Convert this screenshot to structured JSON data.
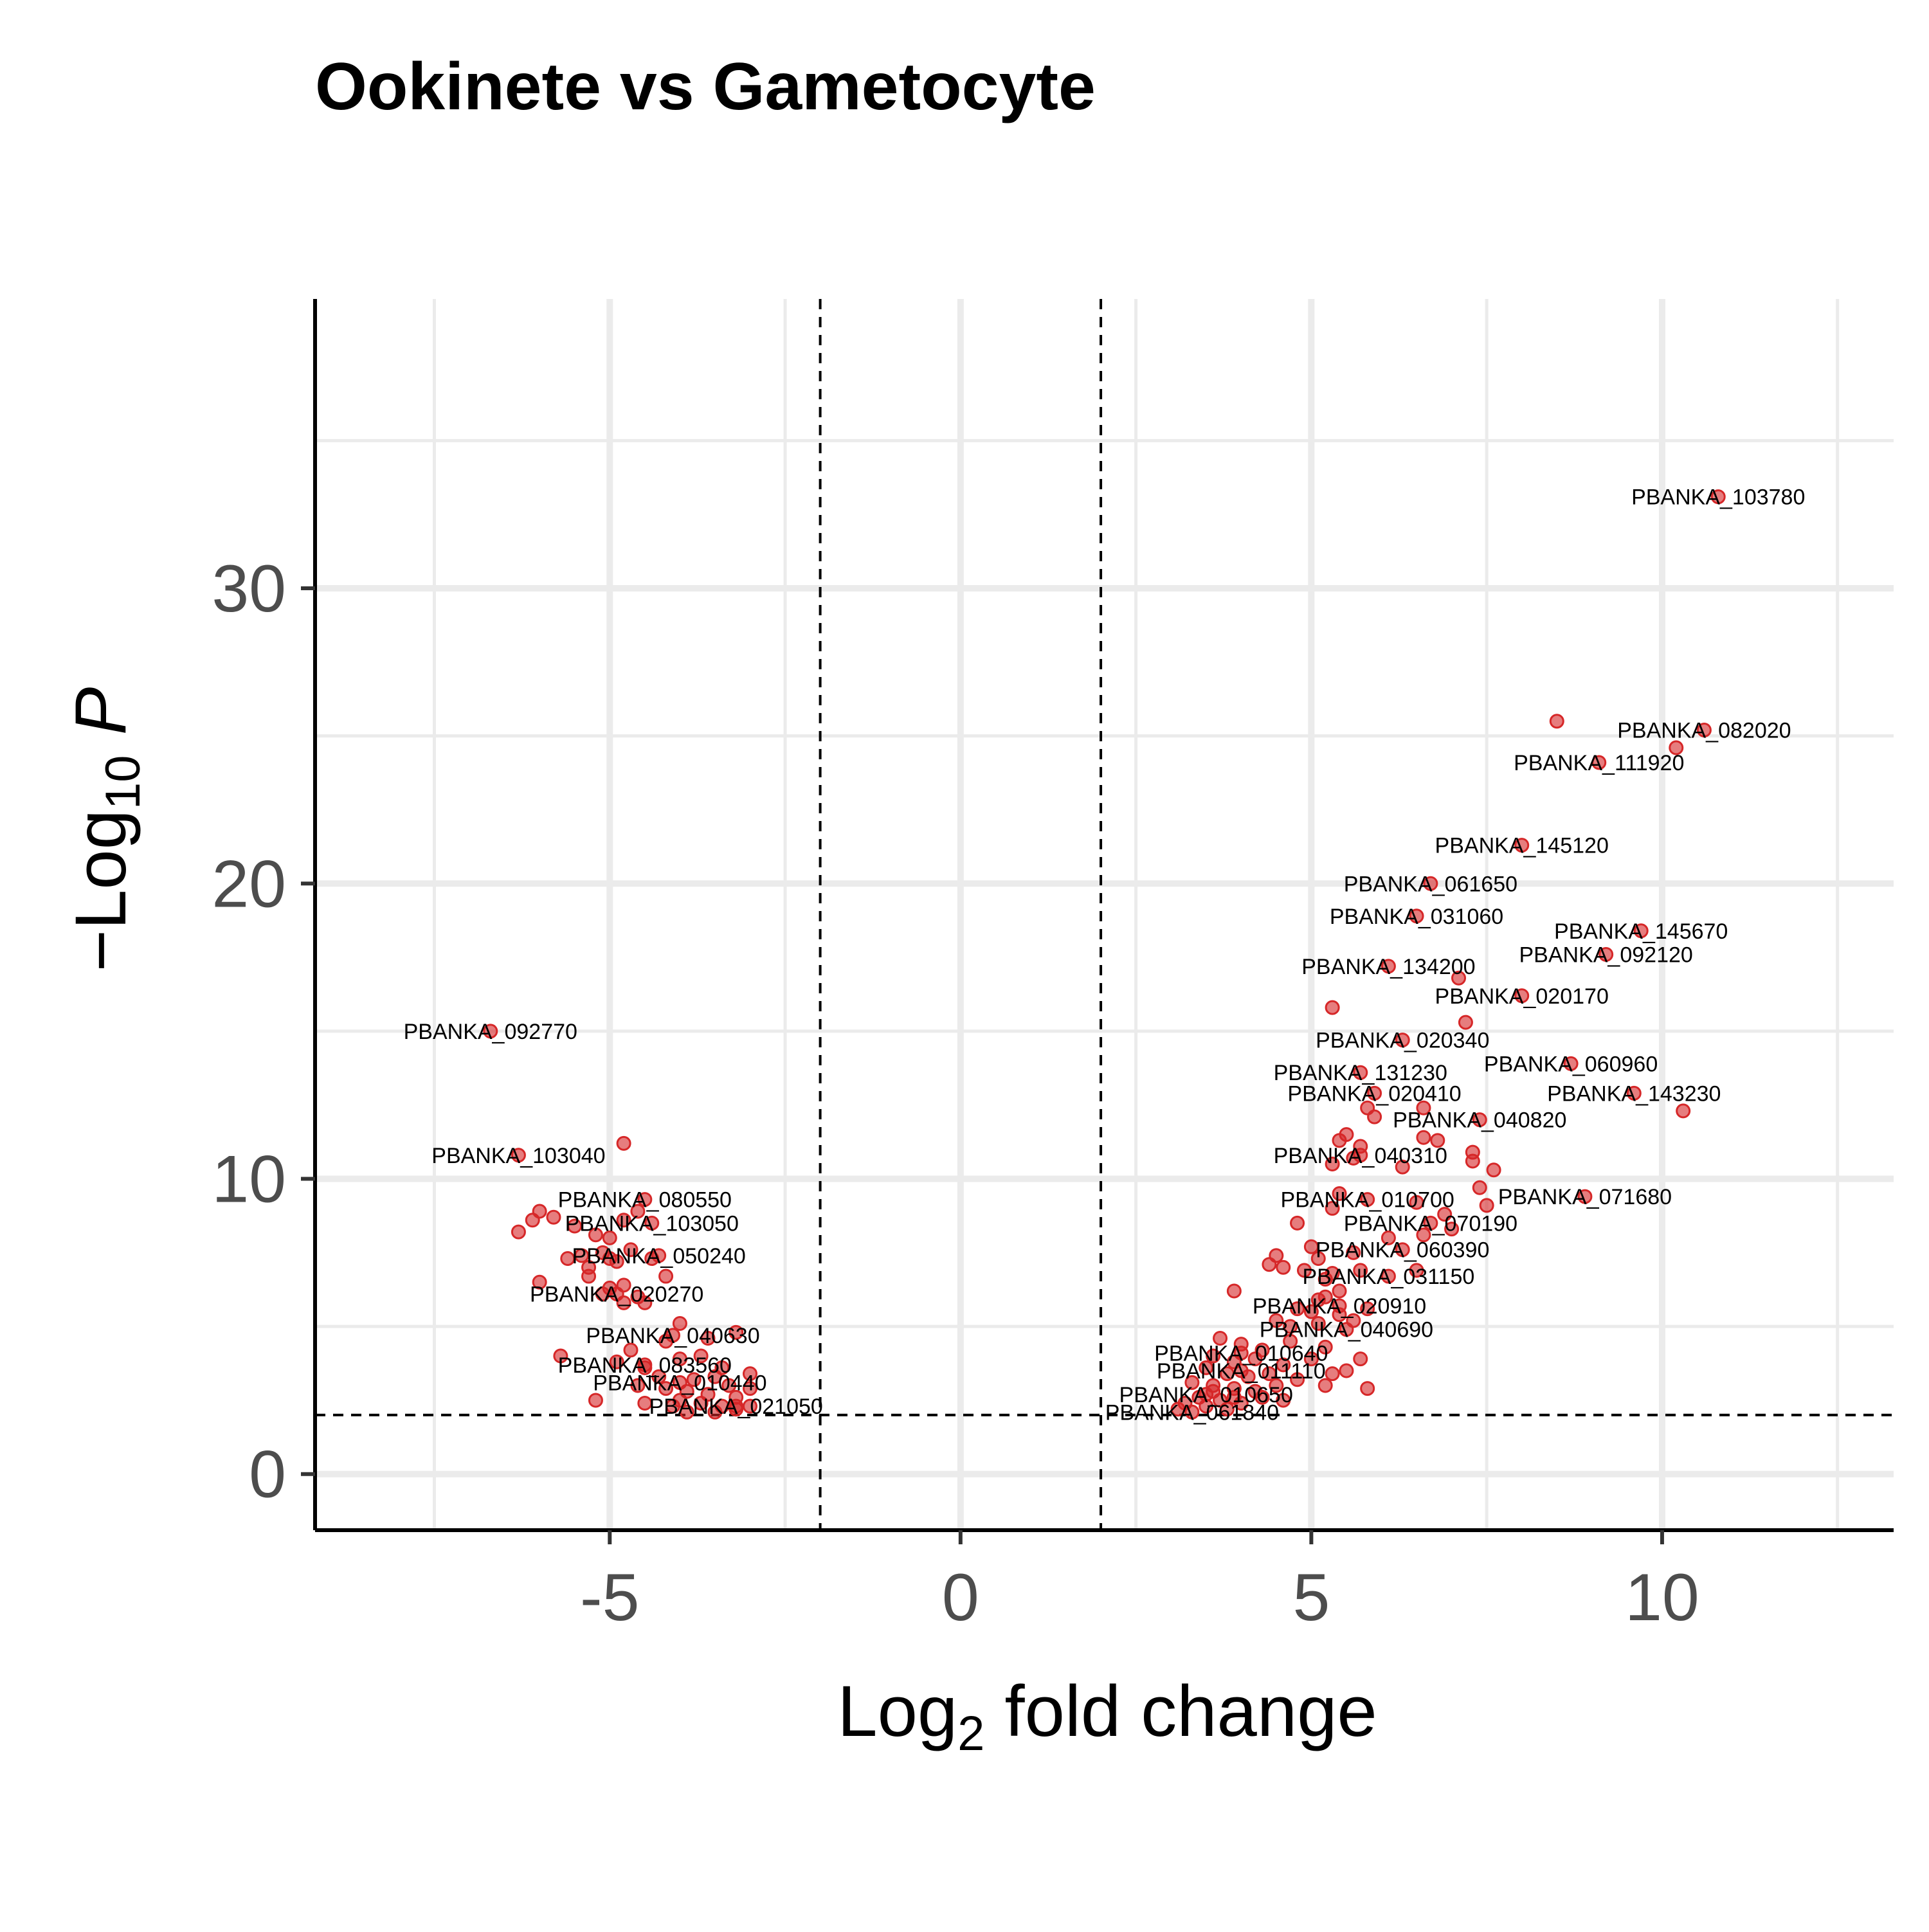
{
  "chart_data": {
    "type": "scatter",
    "title": "Ookinete vs Gametocyte",
    "xlabel": {
      "base": "Log",
      "sub": "2",
      "rest": " fold change"
    },
    "ylabel": {
      "prefix": "−Log",
      "sub": "10",
      "italic": " P"
    },
    "xlim": [
      -9.2,
      13.3
    ],
    "ylim": [
      -1.9,
      39.8
    ],
    "x_ticks": [
      -5,
      0,
      5,
      10
    ],
    "y_ticks": [
      0,
      10,
      20,
      30
    ],
    "grid": true,
    "thresholds": {
      "fc_cutoff": [
        -2,
        2
      ],
      "p_cutoff": 2
    },
    "point_color": "#d62728",
    "labeled_points": [
      {
        "label": "PBANKA_103780",
        "x": 10.8,
        "y": 33.1
      },
      {
        "label": "PBANKA_082020",
        "x": 10.6,
        "y": 25.2
      },
      {
        "label": "PBANKA_111920",
        "x": 9.1,
        "y": 24.1
      },
      {
        "label": "PBANKA_145120",
        "x": 8.0,
        "y": 21.3
      },
      {
        "label": "PBANKA_061650",
        "x": 6.7,
        "y": 20.0
      },
      {
        "label": "PBANKA_031060",
        "x": 6.5,
        "y": 18.9
      },
      {
        "label": "PBANKA_145670",
        "x": 9.7,
        "y": 18.4
      },
      {
        "label": "PBANKA_092120",
        "x": 9.2,
        "y": 17.6
      },
      {
        "label": "PBANKA_134200",
        "x": 6.1,
        "y": 17.2
      },
      {
        "label": "PBANKA_020170",
        "x": 8.0,
        "y": 16.2
      },
      {
        "label": "PBANKA_092770",
        "x": -6.7,
        "y": 15.0
      },
      {
        "label": "PBANKA_020340",
        "x": 6.3,
        "y": 14.7
      },
      {
        "label": "PBANKA_060960",
        "x": 8.7,
        "y": 13.9
      },
      {
        "label": "PBANKA_131230",
        "x": 5.7,
        "y": 13.6
      },
      {
        "label": "PBANKA_020410",
        "x": 5.9,
        "y": 12.9
      },
      {
        "label": "PBANKA_143230",
        "x": 9.6,
        "y": 12.9
      },
      {
        "label": "PBANKA_040820",
        "x": 7.4,
        "y": 12.0
      },
      {
        "label": "PBANKA_103040",
        "x": -6.3,
        "y": 10.8
      },
      {
        "label": "PBANKA_040310",
        "x": 5.7,
        "y": 10.8
      },
      {
        "label": "PBANKA_080550",
        "x": -4.5,
        "y": 9.3
      },
      {
        "label": "PBANKA_010700",
        "x": 5.8,
        "y": 9.3
      },
      {
        "label": "PBANKA_071680",
        "x": 8.9,
        "y": 9.4
      },
      {
        "label": "PBANKA_103050",
        "x": -4.4,
        "y": 8.5
      },
      {
        "label": "PBANKA_070190",
        "x": 6.7,
        "y": 8.5
      },
      {
        "label": "PBANKA_050240",
        "x": -4.3,
        "y": 7.4
      },
      {
        "label": "PBANKA_060390",
        "x": 6.3,
        "y": 7.6
      },
      {
        "label": "PBANKA_031150",
        "x": 6.1,
        "y": 6.7
      },
      {
        "label": "PBANKA_020270",
        "x": -4.9,
        "y": 6.1
      },
      {
        "label": "PBANKA_020910",
        "x": 5.4,
        "y": 5.7
      },
      {
        "label": "PBANKA_040690",
        "x": 5.5,
        "y": 4.9
      },
      {
        "label": "PBANKA_040630",
        "x": -4.1,
        "y": 4.7
      },
      {
        "label": "PBANKA_010640",
        "x": 4.0,
        "y": 4.1
      },
      {
        "label": "PBANKA_083560",
        "x": -4.5,
        "y": 3.7
      },
      {
        "label": "PBANKA_011110",
        "x": 4.0,
        "y": 3.5
      },
      {
        "label": "PBANKA_010440",
        "x": -4.0,
        "y": 3.1
      },
      {
        "label": "PBANKA_010650",
        "x": 3.5,
        "y": 2.7
      },
      {
        "label": "PBANKA_021050",
        "x": -3.2,
        "y": 2.3
      },
      {
        "label": "PBANKA_061840",
        "x": 3.3,
        "y": 2.1
      }
    ],
    "unlabeled_points": [
      [
        8.5,
        25.5
      ],
      [
        10.2,
        24.6
      ],
      [
        7.1,
        16.8
      ],
      [
        5.3,
        15.8
      ],
      [
        7.2,
        15.3
      ],
      [
        10.3,
        12.3
      ],
      [
        -4.8,
        11.2
      ],
      [
        5.8,
        12.4
      ],
      [
        6.6,
        12.4
      ],
      [
        5.5,
        11.5
      ],
      [
        5.9,
        12.1
      ],
      [
        5.4,
        11.3
      ],
      [
        5.7,
        11.1
      ],
      [
        6.6,
        11.4
      ],
      [
        6.8,
        11.3
      ],
      [
        7.3,
        10.9
      ],
      [
        7.3,
        10.6
      ],
      [
        5.6,
        10.7
      ],
      [
        6.3,
        10.4
      ],
      [
        7.6,
        10.3
      ],
      [
        5.3,
        10.5
      ],
      [
        7.4,
        9.7
      ],
      [
        7.5,
        9.1
      ],
      [
        5.3,
        9.0
      ],
      [
        5.4,
        9.5
      ],
      [
        6.5,
        9.2
      ],
      [
        6.9,
        8.8
      ],
      [
        7.0,
        8.3
      ],
      [
        4.8,
        8.5
      ],
      [
        6.1,
        8.0
      ],
      [
        6.6,
        8.1
      ],
      [
        5.0,
        7.7
      ],
      [
        5.1,
        7.3
      ],
      [
        5.6,
        7.5
      ],
      [
        4.5,
        7.4
      ],
      [
        4.4,
        7.1
      ],
      [
        4.6,
        7.0
      ],
      [
        4.9,
        6.9
      ],
      [
        5.3,
        6.8
      ],
      [
        5.2,
        6.6
      ],
      [
        5.7,
        6.9
      ],
      [
        6.5,
        6.9
      ],
      [
        5.2,
        6.0
      ],
      [
        5.4,
        6.2
      ],
      [
        5.1,
        5.9
      ],
      [
        3.9,
        6.2
      ],
      [
        4.8,
        5.6
      ],
      [
        5.0,
        5.5
      ],
      [
        5.4,
        5.4
      ],
      [
        5.6,
        5.2
      ],
      [
        5.8,
        5.6
      ],
      [
        4.5,
        5.2
      ],
      [
        4.7,
        5.0
      ],
      [
        5.1,
        5.1
      ],
      [
        3.7,
        4.6
      ],
      [
        4.0,
        4.4
      ],
      [
        4.3,
        4.2
      ],
      [
        4.7,
        4.5
      ],
      [
        5.2,
        4.3
      ],
      [
        3.6,
        4.0
      ],
      [
        3.9,
        3.8
      ],
      [
        4.2,
        3.9
      ],
      [
        4.6,
        3.7
      ],
      [
        5.0,
        3.9
      ],
      [
        5.7,
        3.9
      ],
      [
        3.5,
        3.6
      ],
      [
        3.8,
        3.4
      ],
      [
        4.1,
        3.3
      ],
      [
        4.4,
        3.4
      ],
      [
        4.8,
        3.2
      ],
      [
        5.3,
        3.4
      ],
      [
        5.5,
        3.5
      ],
      [
        5.2,
        3.0
      ],
      [
        5.8,
        2.9
      ],
      [
        3.3,
        3.1
      ],
      [
        3.6,
        3.0
      ],
      [
        3.9,
        2.9
      ],
      [
        4.2,
        2.8
      ],
      [
        4.5,
        3.0
      ],
      [
        3.4,
        2.6
      ],
      [
        3.7,
        2.5
      ],
      [
        4.0,
        2.4
      ],
      [
        4.3,
        2.6
      ],
      [
        3.2,
        2.4
      ],
      [
        3.5,
        2.3
      ],
      [
        3.8,
        2.2
      ],
      [
        3.1,
        2.2
      ],
      [
        4.6,
        2.5
      ],
      [
        3.6,
        2.8
      ],
      [
        3.9,
        2.6
      ],
      [
        -6.3,
        8.2
      ],
      [
        -6.1,
        8.6
      ],
      [
        -6.0,
        8.9
      ],
      [
        -5.8,
        8.7
      ],
      [
        -5.5,
        8.4
      ],
      [
        -5.2,
        8.1
      ],
      [
        -5.0,
        8.0
      ],
      [
        -4.8,
        8.6
      ],
      [
        -4.6,
        8.9
      ],
      [
        -5.6,
        7.3
      ],
      [
        -5.4,
        7.4
      ],
      [
        -5.1,
        7.5
      ],
      [
        -4.9,
        7.2
      ],
      [
        -4.7,
        7.6
      ],
      [
        -4.4,
        7.3
      ],
      [
        -5.3,
        7.0
      ],
      [
        -5.0,
        7.3
      ],
      [
        -6.0,
        6.5
      ],
      [
        -5.3,
        6.7
      ],
      [
        -5.0,
        6.3
      ],
      [
        -4.8,
        6.4
      ],
      [
        -4.6,
        6.0
      ],
      [
        -4.2,
        6.7
      ],
      [
        -4.8,
        5.8
      ],
      [
        -5.1,
        6.1
      ],
      [
        -4.5,
        5.8
      ],
      [
        -4.0,
        5.1
      ],
      [
        -3.6,
        4.6
      ],
      [
        -3.2,
        4.8
      ],
      [
        -4.2,
        4.5
      ],
      [
        -4.7,
        4.2
      ],
      [
        -5.7,
        4.0
      ],
      [
        -4.9,
        3.8
      ],
      [
        -4.5,
        3.6
      ],
      [
        -4.0,
        3.9
      ],
      [
        -3.7,
        4.0
      ],
      [
        -3.4,
        3.6
      ],
      [
        -3.0,
        3.4
      ],
      [
        -4.3,
        3.3
      ],
      [
        -3.8,
        3.2
      ],
      [
        -3.5,
        3.3
      ],
      [
        -3.3,
        3.0
      ],
      [
        -3.0,
        2.9
      ],
      [
        -4.6,
        3.0
      ],
      [
        -4.2,
        2.9
      ],
      [
        -3.9,
        2.8
      ],
      [
        -3.6,
        2.7
      ],
      [
        -3.2,
        2.6
      ],
      [
        -5.2,
        2.5
      ],
      [
        -4.5,
        2.4
      ],
      [
        -4.0,
        2.5
      ],
      [
        -3.7,
        2.4
      ],
      [
        -3.4,
        2.3
      ],
      [
        -3.0,
        2.3
      ],
      [
        -3.9,
        2.1
      ],
      [
        -3.5,
        2.1
      ],
      [
        -3.2,
        2.2
      ],
      [
        -4.1,
        2.3
      ]
    ]
  }
}
